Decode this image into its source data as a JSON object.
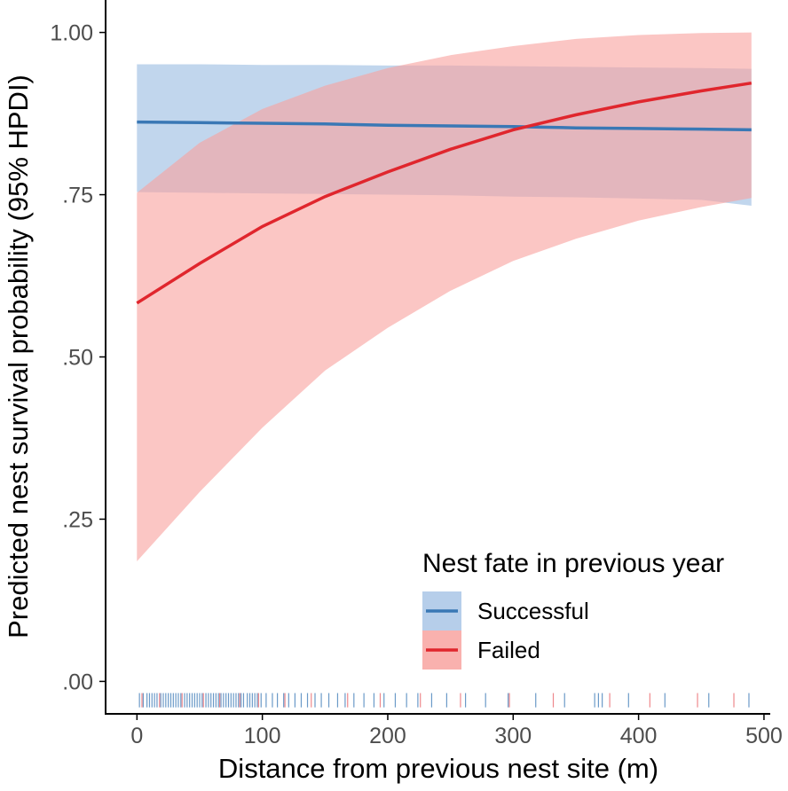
{
  "chart_data": {
    "type": "line",
    "title": "",
    "xlabel": "Distance from previous nest site (m)",
    "ylabel": "Predicted nest survival probability (95% HPDI)",
    "xlim": [
      -25,
      505
    ],
    "ylim": [
      -0.05,
      1.05
    ],
    "x_ticks": [
      0,
      100,
      200,
      300,
      400,
      500
    ],
    "x_tick_labels": [
      "0",
      "100",
      "200",
      "300",
      "400",
      "500"
    ],
    "y_ticks": [
      0.0,
      0.25,
      0.5,
      0.75,
      1.0
    ],
    "y_tick_labels": [
      ".00",
      ".25",
      ".50",
      ".75",
      "1.00"
    ],
    "grid": false,
    "legend": {
      "title": "Nest fate in previous year",
      "position": "bottom-right"
    },
    "series": [
      {
        "name": "Successful",
        "line_color": "#3a78b5",
        "band_color": "#a9c6e6",
        "x": [
          0,
          50,
          100,
          150,
          200,
          250,
          300,
          350,
          400,
          450,
          490
        ],
        "y": [
          0.862,
          0.861,
          0.86,
          0.859,
          0.857,
          0.856,
          0.855,
          0.853,
          0.852,
          0.851,
          0.85
        ],
        "lower": [
          0.754,
          0.753,
          0.752,
          0.751,
          0.75,
          0.749,
          0.747,
          0.746,
          0.744,
          0.742,
          0.733
        ],
        "upper": [
          0.951,
          0.951,
          0.95,
          0.95,
          0.949,
          0.949,
          0.948,
          0.947,
          0.946,
          0.945,
          0.944
        ]
      },
      {
        "name": "Failed",
        "line_color": "#e0262d",
        "band_color": "#f8a3a0",
        "x": [
          0,
          50,
          100,
          150,
          200,
          250,
          300,
          350,
          400,
          450,
          490
        ],
        "y": [
          0.583,
          0.644,
          0.701,
          0.747,
          0.785,
          0.82,
          0.85,
          0.873,
          0.893,
          0.91,
          0.922
        ],
        "lower": [
          0.185,
          0.292,
          0.391,
          0.479,
          0.545,
          0.602,
          0.648,
          0.682,
          0.71,
          0.731,
          0.745
        ],
        "upper": [
          0.753,
          0.83,
          0.882,
          0.918,
          0.945,
          0.965,
          0.979,
          0.99,
          0.996,
          0.999,
          1.0
        ]
      }
    ],
    "rug": {
      "successful_x": [
        2,
        5,
        8,
        10,
        12,
        14,
        16,
        19,
        21,
        23,
        25,
        27,
        29,
        31,
        33,
        35,
        38,
        40,
        42,
        44,
        46,
        48,
        50,
        52,
        55,
        57,
        59,
        61,
        63,
        65,
        67,
        69,
        71,
        73,
        75,
        77,
        79,
        81,
        83,
        85,
        88,
        90,
        92,
        94,
        96,
        99,
        103,
        108,
        112,
        117,
        121,
        126,
        131,
        136,
        142,
        147,
        153,
        160,
        166,
        173,
        181,
        189,
        197,
        206,
        215,
        224,
        235,
        247,
        262,
        278,
        296,
        318,
        341,
        365,
        368,
        371,
        392,
        421,
        456,
        488
      ],
      "failed_x": [
        4,
        18,
        36,
        53,
        66,
        82,
        97,
        118,
        139,
        168,
        194,
        226,
        258,
        297,
        332,
        377,
        409,
        447,
        476
      ]
    }
  }
}
